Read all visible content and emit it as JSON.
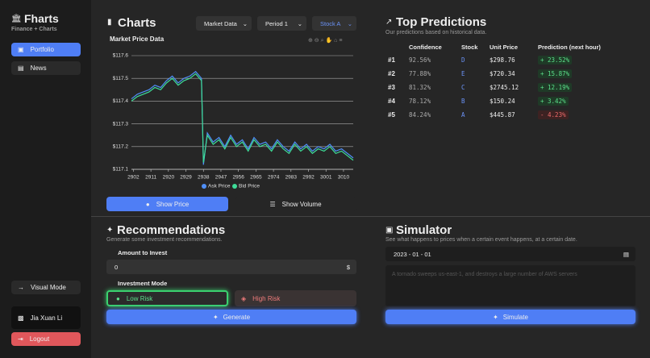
{
  "sidebar": {
    "brand": "Fharts",
    "tagline": "Finance + Charts",
    "nav": [
      "Portfolio",
      "News"
    ],
    "visual_mode": "Visual Mode",
    "user": "Jia Xuan Li",
    "logout": "Logout"
  },
  "charts_panel": {
    "title": "Charts",
    "selects": [
      "Market Data",
      "Period 1",
      "Stock A"
    ],
    "buttons": [
      "Show Price",
      "Show Volume"
    ]
  },
  "chart_data": {
    "type": "line",
    "title": "Market Price Data",
    "x": [
      2901,
      2904,
      2907,
      2910,
      2913,
      2916,
      2919,
      2922,
      2925,
      2928,
      2931,
      2934,
      2937,
      2938,
      2940,
      2943,
      2946,
      2949,
      2952,
      2955,
      2958,
      2961,
      2964,
      2967,
      2970,
      2973,
      2976,
      2979,
      2982,
      2985,
      2988,
      2991,
      2994,
      2997,
      3000,
      3003,
      3006,
      3009,
      3012,
      3015
    ],
    "series": [
      {
        "name": "Ask Price",
        "color": "#4f8ff7",
        "values": [
          117.41,
          117.43,
          117.44,
          117.45,
          117.47,
          117.46,
          117.49,
          117.51,
          117.48,
          117.5,
          117.51,
          117.53,
          117.5,
          117.12,
          117.26,
          117.22,
          117.24,
          117.2,
          117.25,
          117.21,
          117.23,
          117.19,
          117.24,
          117.21,
          117.22,
          117.19,
          117.23,
          117.2,
          117.18,
          117.22,
          117.19,
          117.21,
          117.18,
          117.2,
          117.19,
          117.21,
          117.18,
          117.19,
          117.17,
          117.15
        ]
      },
      {
        "name": "Bid Price",
        "color": "#3ddc97",
        "values": [
          117.4,
          117.42,
          117.43,
          117.44,
          117.46,
          117.45,
          117.48,
          117.5,
          117.47,
          117.49,
          117.5,
          117.52,
          117.49,
          117.13,
          117.25,
          117.21,
          117.23,
          117.19,
          117.24,
          117.2,
          117.22,
          117.18,
          117.23,
          117.2,
          117.21,
          117.18,
          117.22,
          117.19,
          117.17,
          117.21,
          117.18,
          117.2,
          117.17,
          117.19,
          117.18,
          117.2,
          117.17,
          117.18,
          117.16,
          117.14
        ]
      }
    ],
    "xlim": [
      2901,
      3015
    ],
    "xticks": [
      2902,
      2911,
      2920,
      2929,
      2938,
      2947,
      2956,
      2965,
      2974,
      2983,
      2992,
      3001,
      3010
    ],
    "ylim": [
      117.1,
      117.6
    ],
    "yticks": [
      {
        "value": 117.1,
        "label": "$117.1"
      },
      {
        "value": 117.2,
        "label": "$117.2"
      },
      {
        "value": 117.3,
        "label": "$117.3"
      },
      {
        "value": 117.4,
        "label": "$117.4"
      },
      {
        "value": 117.5,
        "label": "$117.5"
      },
      {
        "value": 117.6,
        "label": "$117.6"
      }
    ],
    "grid": true
  },
  "predictions": {
    "title": "Top Predictions",
    "subtitle": "Our predictions based on historical data.",
    "columns": [
      "Confidence",
      "Stock",
      "Unit Price",
      "Prediction (next hour)"
    ],
    "rows": [
      [
        "#1",
        "92.56%",
        "D",
        "$298.76",
        "+ 23.52%"
      ],
      [
        "#2",
        "77.88%",
        "E",
        "$720.34",
        "+ 15.87%"
      ],
      [
        "#3",
        "81.32%",
        "C",
        "$2745.12",
        "+ 12.19%"
      ],
      [
        "#4",
        "78.12%",
        "B",
        "$150.24",
        "+ 3.42%"
      ],
      [
        "#5",
        "84.24%",
        "A",
        "$445.87",
        "- 4.23%"
      ]
    ]
  },
  "recommendations": {
    "title": "Recommendations",
    "subtitle": "Generate some investment recommendations.",
    "amount_label": "Amount to Invest",
    "amount_value": "0",
    "currency": "$",
    "mode_label": "Investment Mode",
    "modes": [
      "Low Risk",
      "High Risk"
    ],
    "button": "Generate"
  },
  "simulator": {
    "title": "Simulator",
    "subtitle": "See what happens to prices when a certain event happens, at a certain date.",
    "date": "2023 - 01 - 01",
    "placeholder": "A tornado sweeps us-east-1, and destroys a large number of AWS servers",
    "button": "Simulate"
  }
}
